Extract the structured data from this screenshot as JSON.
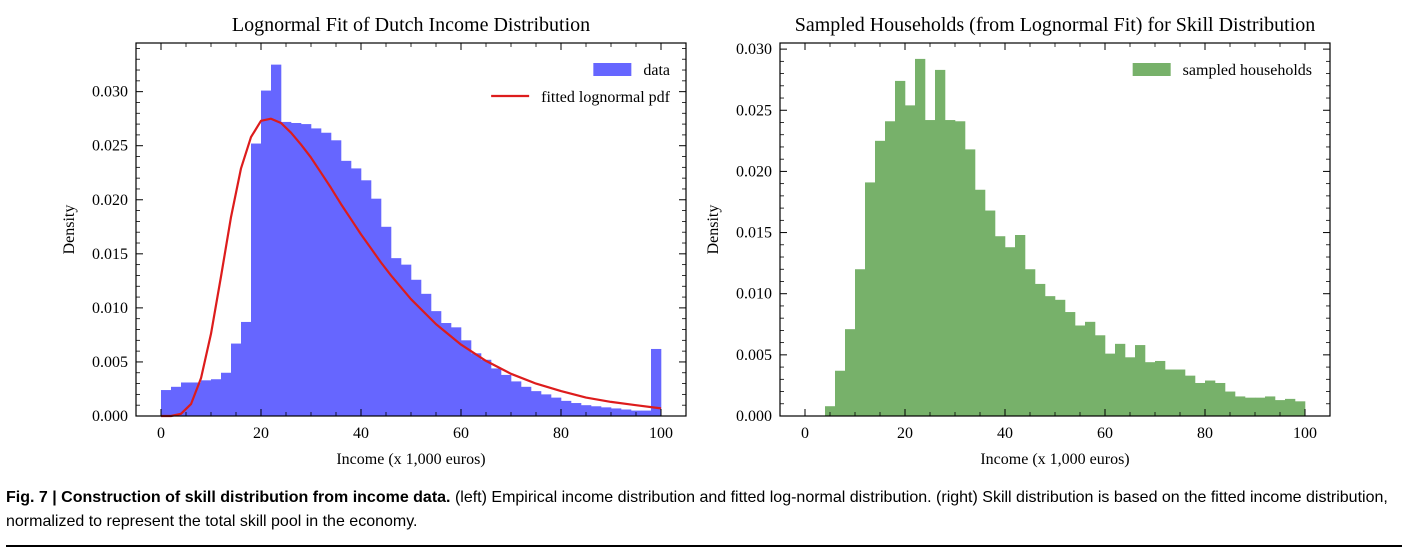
{
  "chart_data": [
    {
      "type": "bar",
      "title": "Lognormal Fit of Dutch Income Distribution",
      "xlabel": "Income (x 1,000 euros)",
      "ylabel": "Density",
      "xlim": [
        -5,
        105
      ],
      "ylim": [
        0,
        0.0345
      ],
      "xticks": [
        0,
        20,
        40,
        60,
        80,
        100
      ],
      "yticks": [
        0.0,
        0.005,
        0.01,
        0.015,
        0.02,
        0.025,
        0.03
      ],
      "xtick_labels": [
        "0",
        "20",
        "40",
        "60",
        "80",
        "100"
      ],
      "ytick_labels": [
        "0.000",
        "0.005",
        "0.010",
        "0.015",
        "0.020",
        "0.025",
        "0.030"
      ],
      "legend_position": "top-right",
      "grid": false,
      "series": [
        {
          "name": "data",
          "kind": "histogram",
          "color": "#6666ff",
          "bin_width": 2,
          "bin_starts": [
            0,
            2,
            4,
            6,
            8,
            10,
            12,
            14,
            16,
            18,
            20,
            22,
            24,
            26,
            28,
            30,
            32,
            34,
            36,
            38,
            40,
            42,
            44,
            46,
            48,
            50,
            52,
            54,
            56,
            58,
            60,
            62,
            64,
            66,
            68,
            70,
            72,
            74,
            76,
            78,
            80,
            82,
            84,
            86,
            88,
            90,
            92,
            94,
            96,
            98
          ],
          "values": [
            0.0024,
            0.0027,
            0.0031,
            0.0031,
            0.0033,
            0.0034,
            0.004,
            0.0067,
            0.0087,
            0.0252,
            0.0301,
            0.0325,
            0.0272,
            0.0271,
            0.027,
            0.0266,
            0.0262,
            0.0255,
            0.0236,
            0.0229,
            0.0218,
            0.0201,
            0.0175,
            0.0146,
            0.014,
            0.0126,
            0.0113,
            0.0097,
            0.0086,
            0.0082,
            0.007,
            0.0058,
            0.0052,
            0.0044,
            0.0038,
            0.0032,
            0.0027,
            0.0023,
            0.002,
            0.0017,
            0.0014,
            0.0012,
            0.001,
            0.0009,
            0.0008,
            0.0007,
            0.0006,
            0.0005,
            0.0005,
            0.0062
          ]
        },
        {
          "name": "fitted lognormal pdf",
          "kind": "line",
          "color": "#dd1c1c",
          "x": [
            0,
            2,
            4,
            6,
            8,
            10,
            12,
            14,
            16,
            18,
            20,
            22,
            24,
            26,
            28,
            30,
            32,
            34,
            36,
            38,
            40,
            42,
            44,
            46,
            48,
            50,
            55,
            60,
            65,
            70,
            75,
            80,
            85,
            90,
            95,
            100
          ],
          "y": [
            0.0,
            0.0,
            0.0002,
            0.0011,
            0.0035,
            0.0076,
            0.0129,
            0.0184,
            0.0229,
            0.0258,
            0.0273,
            0.0275,
            0.0271,
            0.0262,
            0.0251,
            0.0239,
            0.0225,
            0.0211,
            0.0196,
            0.0182,
            0.0168,
            0.0155,
            0.0142,
            0.013,
            0.0119,
            0.0108,
            0.0085,
            0.0066,
            0.0051,
            0.0039,
            0.003,
            0.0023,
            0.0017,
            0.0013,
            0.001,
            0.0007
          ]
        }
      ]
    },
    {
      "type": "bar",
      "title": "Sampled Households (from Lognormal Fit) for Skill Distribution",
      "xlabel": "Income (x 1,000 euros)",
      "ylabel": "Density",
      "xlim": [
        -5,
        105
      ],
      "ylim": [
        0,
        0.0305
      ],
      "xticks": [
        0,
        20,
        40,
        60,
        80,
        100
      ],
      "yticks": [
        0.0,
        0.005,
        0.01,
        0.015,
        0.02,
        0.025,
        0.03
      ],
      "xtick_labels": [
        "0",
        "20",
        "40",
        "60",
        "80",
        "100"
      ],
      "ytick_labels": [
        "0.000",
        "0.005",
        "0.010",
        "0.015",
        "0.020",
        "0.025",
        "0.030"
      ],
      "legend_position": "top-right",
      "grid": false,
      "series": [
        {
          "name": "sampled households",
          "kind": "histogram",
          "color": "#77b16a",
          "bin_width": 2,
          "bin_starts": [
            4,
            6,
            8,
            10,
            12,
            14,
            16,
            18,
            20,
            22,
            24,
            26,
            28,
            30,
            32,
            34,
            36,
            38,
            40,
            42,
            44,
            46,
            48,
            50,
            52,
            54,
            56,
            58,
            60,
            62,
            64,
            66,
            68,
            70,
            72,
            74,
            76,
            78,
            80,
            82,
            84,
            86,
            88,
            90,
            92,
            94,
            96,
            98
          ],
          "values": [
            0.0008,
            0.0037,
            0.0071,
            0.012,
            0.0191,
            0.0225,
            0.0241,
            0.0274,
            0.0254,
            0.0292,
            0.0242,
            0.0283,
            0.0242,
            0.0241,
            0.0218,
            0.0185,
            0.0168,
            0.0147,
            0.0138,
            0.0148,
            0.012,
            0.0108,
            0.0098,
            0.0095,
            0.0085,
            0.0074,
            0.0077,
            0.0066,
            0.0051,
            0.0059,
            0.0048,
            0.0058,
            0.0044,
            0.0045,
            0.0038,
            0.0038,
            0.0033,
            0.0027,
            0.0029,
            0.0027,
            0.002,
            0.0016,
            0.0015,
            0.0015,
            0.0016,
            0.0013,
            0.0014,
            0.0012
          ]
        }
      ]
    }
  ],
  "caption": {
    "label": "Fig. 7 | Construction of skill distribution from income data.",
    "text": " (left) Empirical income distribution and fitted log-normal distribution. (right) Skill distribution is based on the fitted income distribution, normalized to represent the total skill pool in the economy."
  }
}
